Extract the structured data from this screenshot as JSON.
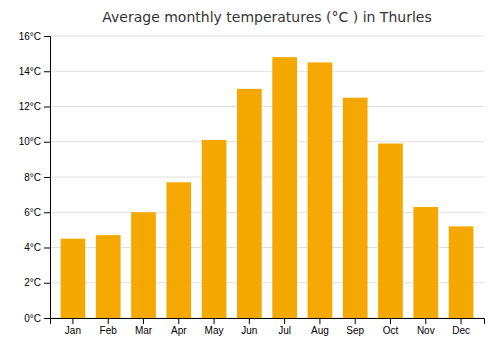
{
  "chart_data": {
    "type": "bar",
    "title": "Average monthly temperatures (°C ) in Thurles",
    "categories": [
      "Jan",
      "Feb",
      "Mar",
      "Apr",
      "May",
      "Jun",
      "Jul",
      "Aug",
      "Sep",
      "Oct",
      "Nov",
      "Dec"
    ],
    "values": [
      4.5,
      4.7,
      6.0,
      7.7,
      10.1,
      13.0,
      14.8,
      14.5,
      12.5,
      9.9,
      6.3,
      5.2
    ],
    "color": "#F5A800",
    "ylim": [
      0,
      16
    ],
    "yticks": [
      {
        "value": 0,
        "label": "0°C"
      },
      {
        "value": 2,
        "label": "2°C"
      },
      {
        "value": 4,
        "label": "4°C"
      },
      {
        "value": 6,
        "label": "6°C"
      },
      {
        "value": 8,
        "label": "8°C"
      },
      {
        "value": 10,
        "label": "10°C"
      },
      {
        "value": 12,
        "label": "12°C"
      },
      {
        "value": 14,
        "label": "14°C"
      },
      {
        "value": 16,
        "label": "16°C"
      }
    ],
    "grid": true
  }
}
